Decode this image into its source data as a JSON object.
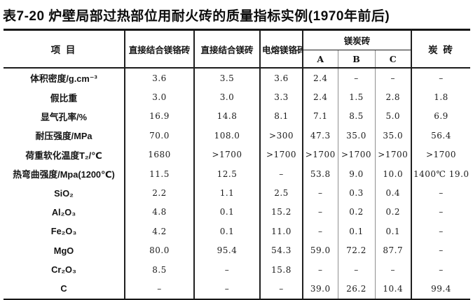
{
  "page": {
    "title": "表7-20 炉壁局部过热部位用耐火砖的质量指标实例(1970年前后)"
  },
  "table": {
    "headers": {
      "item": "项  目",
      "direct_bonded_magnesia_chrome": "直接结合镁铬砖",
      "direct_bonded_magnesia": "直接结合镁砖",
      "fused_magnesia_chrome": "电熔镁铬砖",
      "magnesia_carbon_group": "镁炭砖",
      "grade_a": "A",
      "grade_b": "B",
      "grade_c": "C",
      "carbon": "炭  砖"
    },
    "rows": [
      {
        "label": "体积密度/g.cm⁻³",
        "values": [
          "3.6",
          "3.5",
          "3.6",
          "2.4",
          "–",
          "–",
          "–"
        ]
      },
      {
        "label": "假比重",
        "values": [
          "3.0",
          "3.0",
          "3.3",
          "2.4",
          "1.5",
          "2.8",
          "1.8"
        ]
      },
      {
        "label": "显气孔率/%",
        "values": [
          "16.9",
          "14.8",
          "8.1",
          "7.1",
          "8.5",
          "5.0",
          "6.9"
        ]
      },
      {
        "label": "耐压强度/MPa",
        "values": [
          "70.0",
          "108.0",
          ">300",
          "47.3",
          "35.0",
          "35.0",
          "56.4"
        ]
      },
      {
        "label": "荷重软化温度T₂/℃",
        "values": [
          "1680",
          ">1700",
          ">1700",
          ">1700",
          ">1700",
          ">1700",
          ">1700"
        ]
      },
      {
        "label": "热弯曲强度/Mpa(1200℃)",
        "values": [
          "11.5",
          "12.5",
          "–",
          "53.8",
          "9.0",
          "10.0",
          "1400℃ 19.0"
        ]
      },
      {
        "label": "SiO₂",
        "values": [
          "2.2",
          "1.1",
          "2.5",
          "–",
          "0.3",
          "0.4",
          "–"
        ]
      },
      {
        "label": "Al₂O₃",
        "values": [
          "4.8",
          "0.1",
          "15.2",
          "–",
          "0.2",
          "0.2",
          "–"
        ]
      },
      {
        "label": "Fe₂O₃",
        "values": [
          "4.2",
          "0.1",
          "11.0",
          "–",
          "0.1",
          "0.1",
          "–"
        ]
      },
      {
        "label": "MgO",
        "values": [
          "80.0",
          "95.4",
          "54.3",
          "59.0",
          "72.2",
          "87.7",
          "–"
        ]
      },
      {
        "label": "Cr₂O₃",
        "values": [
          "8.5",
          "–",
          "15.8",
          "–",
          "–",
          "–",
          "–"
        ]
      },
      {
        "label": "C",
        "values": [
          "–",
          "–",
          "–",
          "39.0",
          "26.2",
          "10.4",
          "99.4"
        ]
      }
    ]
  }
}
